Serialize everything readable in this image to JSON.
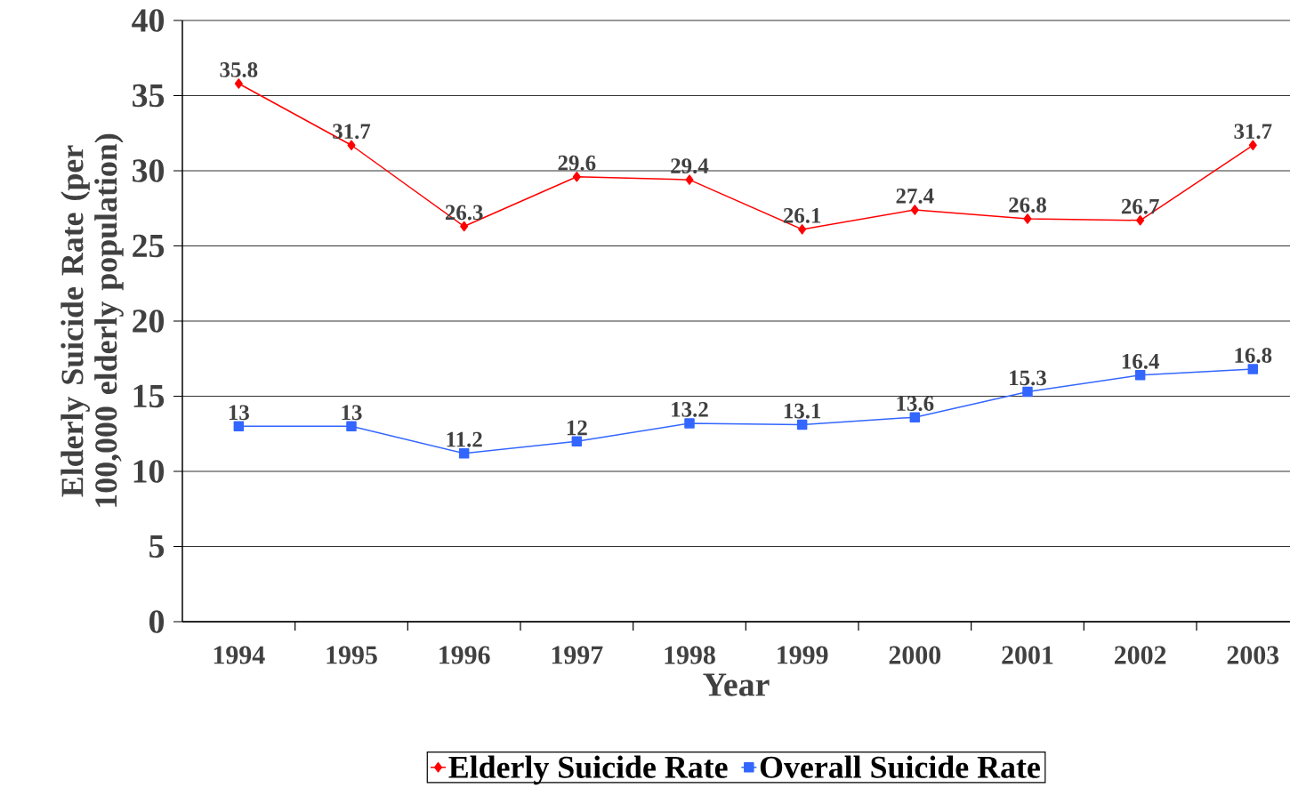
{
  "chart_data": {
    "type": "line",
    "xlabel": "Year",
    "ylabel": "Elderly Suicide Rate (per 100,000 elderly population)",
    "categories": [
      "1994",
      "1995",
      "1996",
      "1997",
      "1998",
      "1999",
      "2000",
      "2001",
      "2002",
      "2003"
    ],
    "series": [
      {
        "name": "Elderly Suicide Rate",
        "color": "#ff0000",
        "marker": "diamond",
        "values": [
          35.8,
          31.7,
          26.3,
          29.6,
          29.4,
          26.1,
          27.4,
          26.8,
          26.7,
          31.7
        ]
      },
      {
        "name": "Overall Suicide Rate",
        "color": "#3366ff",
        "marker": "square",
        "values": [
          13,
          13,
          11.2,
          12,
          13.2,
          13.1,
          13.6,
          15.3,
          16.4,
          16.8
        ]
      }
    ],
    "ylim": [
      0,
      40
    ],
    "yticks": [
      0,
      5,
      10,
      15,
      20,
      25,
      30,
      35,
      40
    ],
    "grid": "y",
    "legend": "bottom",
    "data_labels": true,
    "line_style": "solid"
  }
}
